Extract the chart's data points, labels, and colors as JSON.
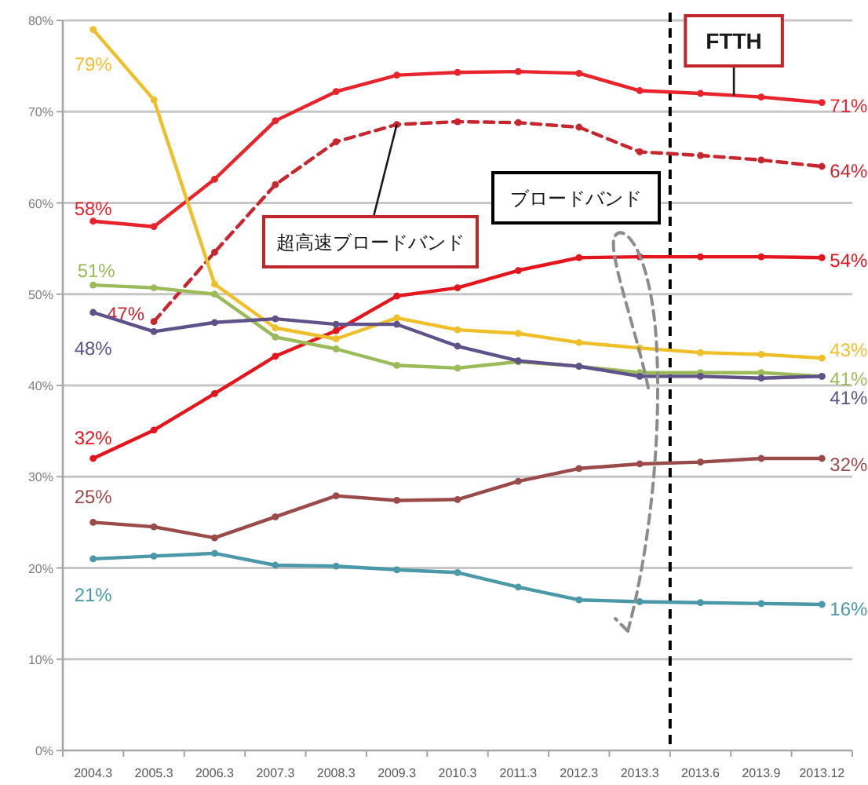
{
  "chart_data": {
    "type": "line",
    "categories": [
      "2004.3",
      "2005.3",
      "2006.3",
      "2007.3",
      "2008.3",
      "2009.3",
      "2010.3",
      "2011.3",
      "2012.3",
      "2013.3",
      "2013.6",
      "2013.9",
      "2013.12"
    ],
    "ylim": [
      0,
      80
    ],
    "yticks": [
      {
        "value": 0,
        "label": "0%"
      },
      {
        "value": 10,
        "label": "10%"
      },
      {
        "value": 20,
        "label": "20%"
      },
      {
        "value": 30,
        "label": "30%"
      },
      {
        "value": 40,
        "label": "40%"
      },
      {
        "value": 50,
        "label": "50%"
      },
      {
        "value": 60,
        "label": "60%"
      },
      {
        "value": 70,
        "label": "70%"
      },
      {
        "value": 80,
        "label": "80%"
      }
    ],
    "grid": "y",
    "marker": "circle",
    "line_style": "solid",
    "series": [
      {
        "name": "FTTH",
        "color": "#e8232b",
        "values": [
          58,
          57.4,
          62.6,
          69.0,
          72.2,
          74.0,
          74.3,
          74.4,
          74.2,
          72.3,
          72.0,
          71.6,
          71
        ],
        "value_labels": [
          "58%",
          null,
          null,
          null,
          null,
          null,
          null,
          null,
          null,
          null,
          null,
          null,
          "71%"
        ]
      },
      {
        "name": "超高速ブロードバンド",
        "color": "#c8262e",
        "line_style": "dashed",
        "values": [
          null,
          47,
          54.6,
          62.0,
          66.7,
          68.6,
          68.9,
          68.8,
          68.3,
          65.6,
          65.2,
          64.7,
          64
        ],
        "value_labels": [
          null,
          "47%",
          null,
          null,
          null,
          null,
          null,
          null,
          null,
          null,
          null,
          null,
          "64%"
        ]
      },
      {
        "color": "#e3161e",
        "values": [
          32,
          35.1,
          39.1,
          43.2,
          46.0,
          49.8,
          50.7,
          52.6,
          54.0,
          54.1,
          54.1,
          54.1,
          54
        ],
        "value_labels": [
          "32%",
          null,
          null,
          null,
          null,
          null,
          null,
          null,
          null,
          null,
          null,
          null,
          "54%"
        ]
      },
      {
        "color": "#efbf2a",
        "values": [
          79,
          71.3,
          51.1,
          46.3,
          45.1,
          47.4,
          46.1,
          45.7,
          44.7,
          44.1,
          43.6,
          43.4,
          43
        ],
        "value_labels": [
          "79%",
          null,
          null,
          null,
          null,
          null,
          null,
          null,
          null,
          null,
          null,
          null,
          "43%"
        ]
      },
      {
        "color": "#9bbb59",
        "values": [
          51,
          50.7,
          50.0,
          45.3,
          44.0,
          42.2,
          41.9,
          42.6,
          42.1,
          41.4,
          41.4,
          41.4,
          41
        ],
        "value_labels": [
          "51%",
          null,
          null,
          null,
          null,
          null,
          null,
          null,
          null,
          null,
          null,
          null,
          "41%"
        ]
      },
      {
        "color": "#5f5189",
        "values": [
          48,
          45.9,
          46.9,
          47.3,
          46.7,
          46.7,
          44.3,
          42.7,
          42.1,
          41.0,
          41.0,
          40.8,
          41
        ],
        "value_labels": [
          "48%",
          null,
          null,
          null,
          null,
          null,
          null,
          null,
          null,
          null,
          null,
          null,
          "41%"
        ]
      },
      {
        "color": "#9b4a4a",
        "values": [
          25,
          24.5,
          23.3,
          25.6,
          27.9,
          27.4,
          27.5,
          29.5,
          30.9,
          31.4,
          31.6,
          32.0,
          32
        ],
        "value_labels": [
          "25%",
          null,
          null,
          null,
          null,
          null,
          null,
          null,
          null,
          null,
          null,
          null,
          "32%"
        ]
      },
      {
        "color": "#4a98a8",
        "values": [
          21,
          21.3,
          21.6,
          20.3,
          20.2,
          19.8,
          19.5,
          17.9,
          16.5,
          16.3,
          16.2,
          16.1,
          16
        ],
        "value_labels": [
          "21%",
          null,
          null,
          null,
          null,
          null,
          null,
          null,
          null,
          null,
          null,
          null,
          "16%"
        ]
      }
    ],
    "annotations": [
      "ブロードバンド"
    ]
  }
}
